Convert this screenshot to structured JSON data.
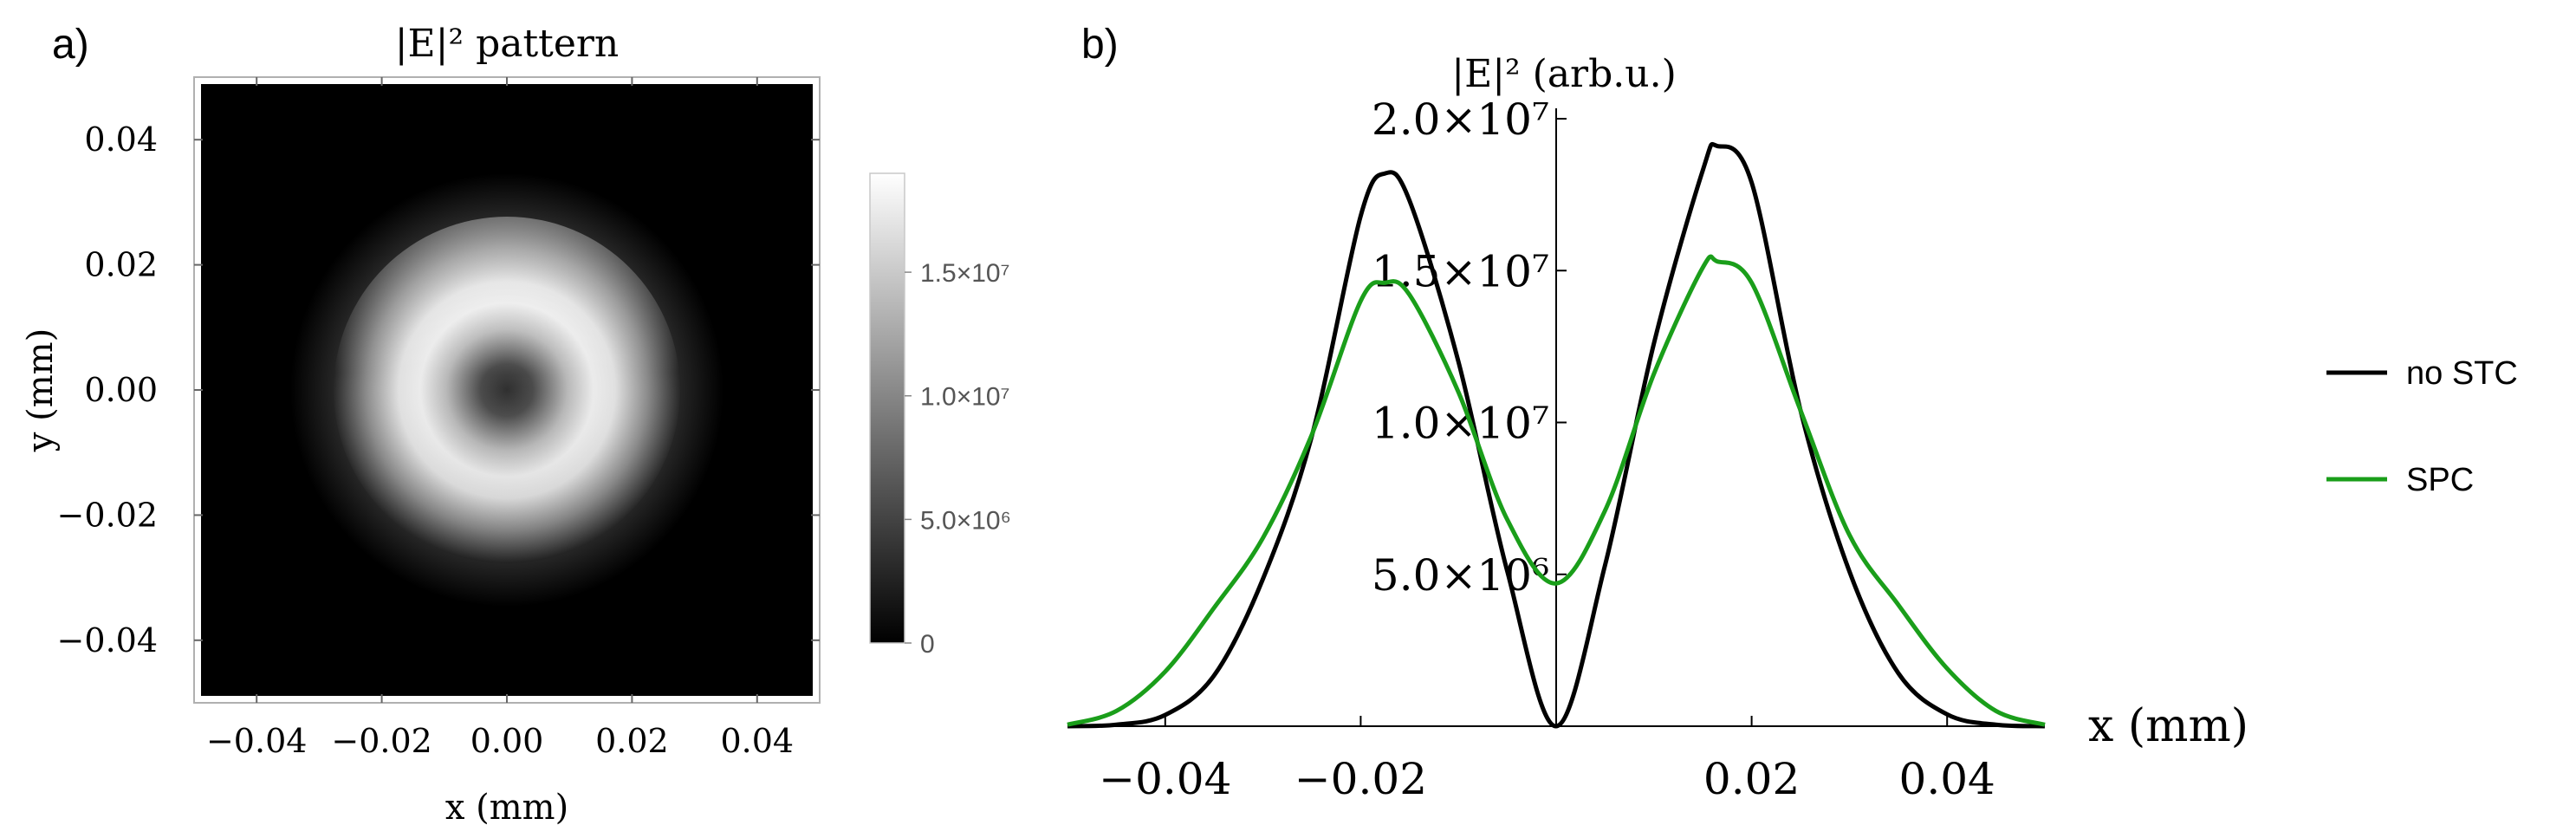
{
  "panels": {
    "a": {
      "label": "a)"
    },
    "b": {
      "label": "b)"
    }
  },
  "chart_data": [
    {
      "type": "heatmap",
      "title": "|E|² pattern",
      "xlabel": "x (mm)",
      "ylabel": "y (mm)",
      "xlim": [
        -0.05,
        0.05
      ],
      "ylim": [
        -0.05,
        0.05
      ],
      "x_ticks": [
        "−0.04",
        "−0.02",
        "0.00",
        "0.02",
        "0.04"
      ],
      "y_ticks": [
        "0.04",
        "0.02",
        "0.00",
        "−0.02",
        "−0.04"
      ],
      "colorbar": {
        "range": [
          0,
          19000000
        ],
        "ticks": [
          {
            "value": 0,
            "label": "0"
          },
          {
            "value": 5000000,
            "label": "5.0×10⁶"
          },
          {
            "value": 10000000,
            "label": "1.0×10⁷"
          },
          {
            "value": 15000000,
            "label": "1.5×10⁷"
          }
        ],
        "colormap": "grayscale"
      },
      "pattern": {
        "shape": "donut ring",
        "ring_radius": 0.018,
        "peak": 19000000,
        "center_value": 4700000,
        "brighter_side": "top"
      }
    },
    {
      "type": "line",
      "ylabel": "|E|² (arb.u.)",
      "xlabel": "x (mm)",
      "xlim": [
        -0.05,
        0.05
      ],
      "ylim": [
        0,
        20000000
      ],
      "x_ticks": [
        "−0.04",
        "−0.02",
        "0.02",
        "0.04"
      ],
      "y_ticks": [
        {
          "value": 5000000,
          "label": "5.0×10⁶"
        },
        {
          "value": 10000000,
          "label": "1.0×10⁷"
        },
        {
          "value": 15000000,
          "label": "1.5×10⁷"
        },
        {
          "value": 20000000,
          "label": "2.0×10⁷"
        }
      ],
      "legend_position": "right",
      "series": [
        {
          "name": "no STC",
          "color": "#000000",
          "x": [
            -0.05,
            -0.045,
            -0.04,
            -0.035,
            -0.03,
            -0.025,
            -0.02,
            -0.0175,
            -0.015,
            -0.01,
            -0.005,
            0.0,
            0.005,
            0.01,
            0.015,
            0.0165,
            0.02,
            0.025,
            0.03,
            0.035,
            0.04,
            0.045,
            0.05
          ],
          "y": [
            0,
            50000,
            370000,
            1670000,
            4850000,
            9550000,
            16800000,
            18200000,
            17300000,
            12000000,
            5100000,
            0,
            5300000,
            12600000,
            18300000,
            19100000,
            17900000,
            10400000,
            5100000,
            1750000,
            390000,
            50000,
            0
          ]
        },
        {
          "name": "SPC",
          "color": "#1a9e1a",
          "x": [
            -0.05,
            -0.045,
            -0.04,
            -0.035,
            -0.03,
            -0.025,
            -0.02,
            -0.0175,
            -0.015,
            -0.01,
            -0.005,
            0.0,
            0.005,
            0.01,
            0.015,
            0.0165,
            0.02,
            0.025,
            0.03,
            0.035,
            0.04,
            0.045,
            0.05
          ],
          "y": [
            50000,
            500000,
            1800000,
            3900000,
            6200000,
            9600000,
            14000000,
            14600000,
            14200000,
            11000000,
            6800000,
            4700000,
            7100000,
            11600000,
            15100000,
            15300000,
            14600000,
            10400000,
            6300000,
            4000000,
            1900000,
            500000,
            50000
          ]
        }
      ]
    }
  ]
}
